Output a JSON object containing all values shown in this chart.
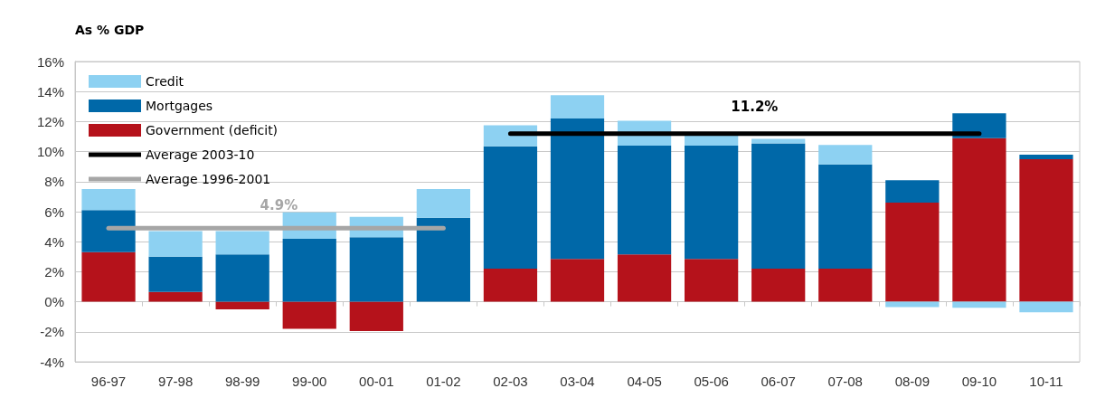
{
  "chart_data": {
    "type": "bar",
    "ylabel": "As % GDP",
    "stacked": true,
    "categories": [
      "96-97",
      "97-98",
      "98-99",
      "99-00",
      "00-01",
      "01-02",
      "02-03",
      "03-04",
      "04-05",
      "05-06",
      "06-07",
      "07-08",
      "08-09",
      "09-10",
      "10-11"
    ],
    "series": [
      {
        "name": "Government (deficit)",
        "color": "#b5121b",
        "values": [
          3.3,
          0.65,
          -0.5,
          -1.8,
          -1.95,
          0,
          2.2,
          2.85,
          3.15,
          2.85,
          2.2,
          2.2,
          6.6,
          10.9,
          9.5
        ]
      },
      {
        "name": "Mortgages",
        "color": "#0068a8",
        "values": [
          2.8,
          2.35,
          3.15,
          4.2,
          4.3,
          5.6,
          8.15,
          9.35,
          7.25,
          7.55,
          8.35,
          6.95,
          1.5,
          1.65,
          0.3
        ]
      },
      {
        "name": "Credit",
        "color": "#8dd1f2",
        "values": [
          1.4,
          1.7,
          1.55,
          1.75,
          1.35,
          1.9,
          1.4,
          1.55,
          1.65,
          0.7,
          0.3,
          1.3,
          -0.35,
          -0.4,
          -0.7
        ]
      },
      {
        "name": "Average 2003-10",
        "type": "line",
        "color": "#000000",
        "values": [
          null,
          null,
          null,
          null,
          null,
          null,
          11.2,
          11.2,
          11.2,
          11.2,
          11.2,
          11.2,
          11.2,
          11.2,
          null
        ]
      },
      {
        "name": "Average 1996-2001",
        "type": "line",
        "color": "#a6a6a6",
        "values": [
          4.9,
          4.9,
          4.9,
          4.9,
          4.9,
          4.9,
          null,
          null,
          null,
          null,
          null,
          null,
          null,
          null,
          null
        ]
      }
    ],
    "annotations": [
      {
        "text": "4.9%",
        "y": 4.9
      },
      {
        "text": "11.2%",
        "y": 11.2
      }
    ],
    "marker": "none",
    "line_style": "solid",
    "ylim": [
      -4,
      16
    ],
    "yticks": [
      {
        "value": -4,
        "label": "-4%"
      },
      {
        "value": -2,
        "label": "-2%"
      },
      {
        "value": 0,
        "label": "0%"
      },
      {
        "value": 2,
        "label": "2%"
      },
      {
        "value": 4,
        "label": "4%"
      },
      {
        "value": 6,
        "label": "6%"
      },
      {
        "value": 8,
        "label": "8%"
      },
      {
        "value": 10,
        "label": "10%"
      },
      {
        "value": 12,
        "label": "12%"
      },
      {
        "value": 14,
        "label": "14%"
      },
      {
        "value": 16,
        "label": "16%"
      }
    ],
    "grid": "y",
    "legend": "top left"
  }
}
